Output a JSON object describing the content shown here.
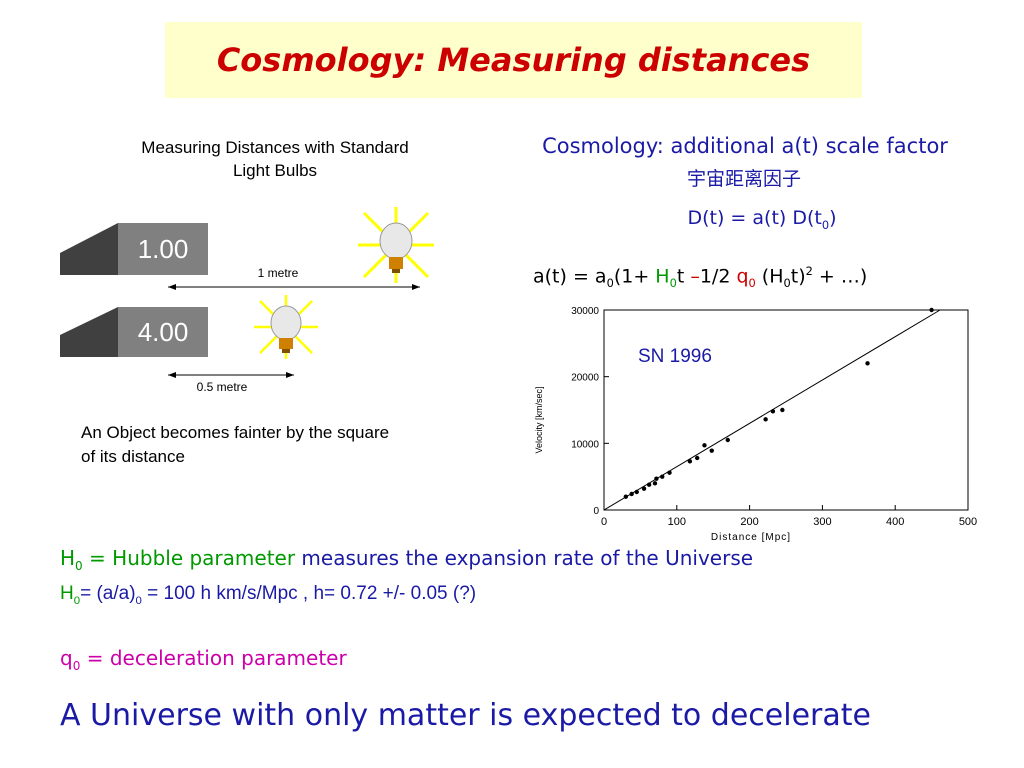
{
  "slide": {
    "title": "Cosmology: Measuring distances"
  },
  "left_figure": {
    "title_line1": "Measuring Distances with Standard",
    "title_line2": "Light Bulbs",
    "box1_label": "1.00",
    "box2_label": "4.00",
    "distance1_label": "1 metre",
    "distance2_label": "0.5 metre",
    "caption_line1": "An Object becomes fainter by the square",
    "caption_line2": "of its distance",
    "colors": {
      "box": "#808080",
      "box_text": "#ffffff",
      "glow": "#ffff00"
    }
  },
  "right_text": {
    "scale_factor_line": "Cosmology: additional a(t) scale factor",
    "chinese_line": "宇宙距离因子",
    "dt_eq_prefix": "D(t) = a(t) D(t",
    "dt_eq_sub": "0",
    "dt_eq_suffix": ")",
    "at_eq": {
      "p1": "a(t) = a",
      "sub1": "0",
      "p2": "(1+ ",
      "h": "H",
      "h_sub": "0",
      "p3": "t ",
      "minus": "–",
      "p4": "1/2 ",
      "q": "q",
      "q_sub": "0",
      "p5": " (H",
      "sub2": "0",
      "p6": "t)",
      "sup": "2",
      "p7": " +  …)"
    }
  },
  "chart_data": {
    "type": "scatter",
    "annotation": "SN 1996",
    "xlabel": "Distance [Mpc]",
    "ylabel": "Velocity [km/sec]",
    "xlim": [
      0,
      500
    ],
    "ylim": [
      0,
      30000
    ],
    "xticks": [
      0,
      100,
      200,
      300,
      400,
      500
    ],
    "yticks": [
      0,
      10000,
      20000,
      30000
    ],
    "x_tick_labels": [
      "0",
      "100",
      "200",
      "300",
      "400",
      "500"
    ],
    "y_tick_labels": [
      "0",
      "10000",
      "20000",
      "30000"
    ],
    "fit_line": {
      "x": [
        0,
        500
      ],
      "y": [
        0,
        32500
      ]
    },
    "points": [
      {
        "x": 30,
        "y": 2000
      },
      {
        "x": 38,
        "y": 2400
      },
      {
        "x": 45,
        "y": 2700
      },
      {
        "x": 55,
        "y": 3200
      },
      {
        "x": 62,
        "y": 3800
      },
      {
        "x": 70,
        "y": 4000
      },
      {
        "x": 72,
        "y": 4700
      },
      {
        "x": 80,
        "y": 5000
      },
      {
        "x": 90,
        "y": 5600
      },
      {
        "x": 118,
        "y": 7300
      },
      {
        "x": 128,
        "y": 7800
      },
      {
        "x": 138,
        "y": 9700
      },
      {
        "x": 148,
        "y": 8900
      },
      {
        "x": 170,
        "y": 10500
      },
      {
        "x": 222,
        "y": 13600
      },
      {
        "x": 232,
        "y": 14800
      },
      {
        "x": 245,
        "y": 15000
      },
      {
        "x": 362,
        "y": 22000
      },
      {
        "x": 450,
        "y": 30000
      }
    ],
    "grid": false,
    "colors": {
      "points": "#000000",
      "line": "#000000",
      "annotation": "#1a1aa6"
    }
  },
  "bottom": {
    "h0_symbol": "H",
    "h0_sub": "0",
    "h0_name": " = Hubble parameter",
    "h0_desc": "  measures the expansion rate of the Universe",
    "h0_def_symbol": "H",
    "h0_def_sub": "0",
    "h0_def_mid": "=  (a/a)",
    "h0_def_sub2": "0",
    "h0_def_rest": "  = 100 h  km/s/Mpc ,    h= 0.72 +/- 0.05 (?)",
    "q0_symbol": "q",
    "q0_sub": "0",
    "q0_text": " = deceleration parameter",
    "conclusion": "A Universe with only matter is expected to decelerate"
  }
}
